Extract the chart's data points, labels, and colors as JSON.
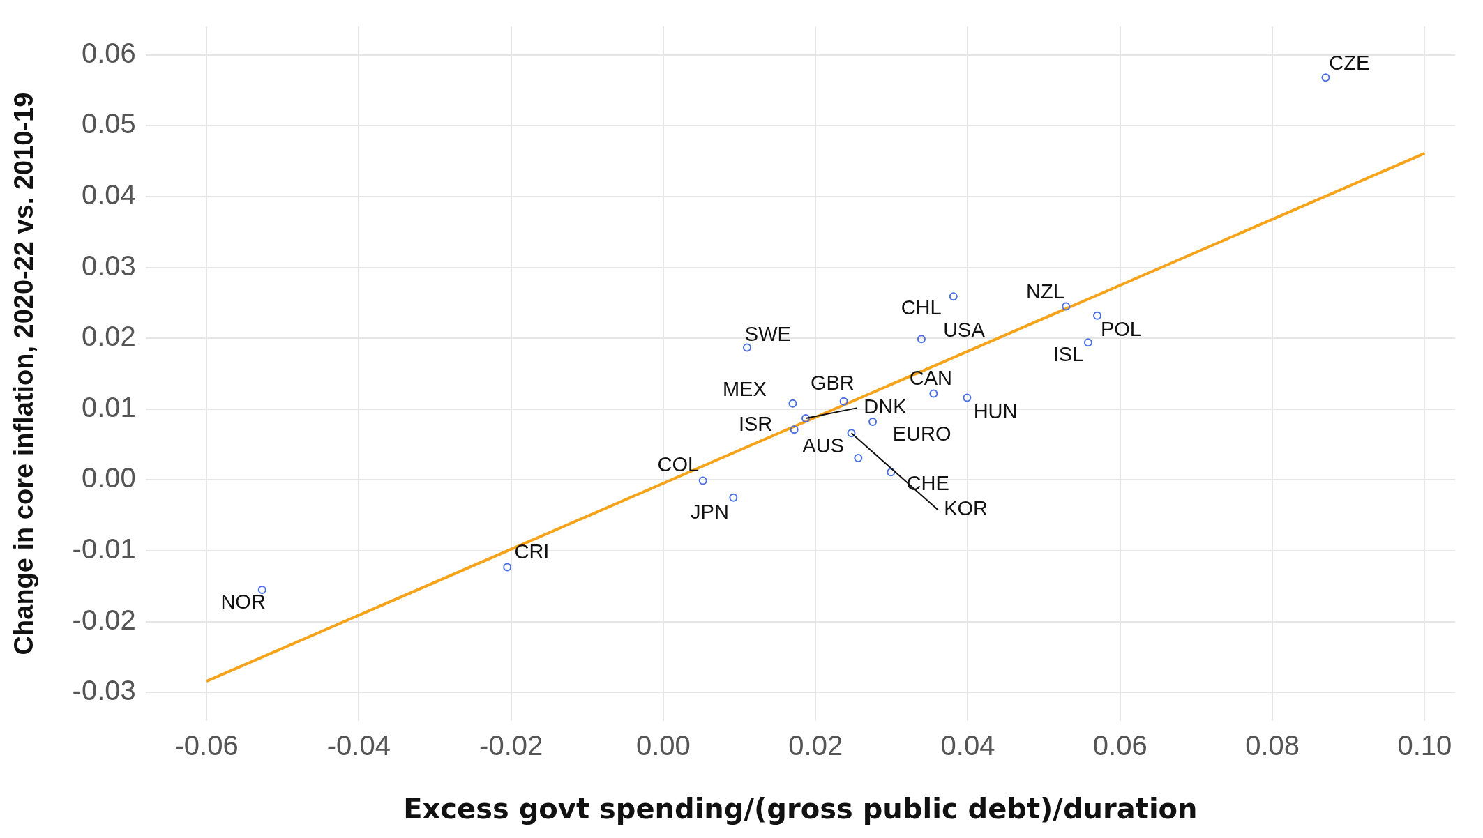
{
  "chart_data": {
    "type": "scatter",
    "xlabel": "Excess govt spending/(gross public debt)/duration",
    "ylabel": "Change in core inflation, 2020-22 vs. 2010-19",
    "xlim": [
      -0.068,
      0.104
    ],
    "ylim": [
      -0.034,
      0.064
    ],
    "xticks": [
      {
        "value": -0.06,
        "label": "-0.06"
      },
      {
        "value": -0.04,
        "label": "-0.04"
      },
      {
        "value": -0.02,
        "label": "-0.02"
      },
      {
        "value": 0,
        "label": "0.00"
      },
      {
        "value": 0.02,
        "label": "0.02"
      },
      {
        "value": 0.04,
        "label": "0.04"
      },
      {
        "value": 0.06,
        "label": "0.06"
      },
      {
        "value": 0.08,
        "label": "0.08"
      },
      {
        "value": 0.1,
        "label": "0.10"
      }
    ],
    "yticks": [
      {
        "value": -0.03,
        "label": "-0.03"
      },
      {
        "value": -0.02,
        "label": "-0.02"
      },
      {
        "value": -0.01,
        "label": "-0.01"
      },
      {
        "value": 0,
        "label": "0.00"
      },
      {
        "value": 0.01,
        "label": "0.01"
      },
      {
        "value": 0.02,
        "label": "0.02"
      },
      {
        "value": 0.03,
        "label": "0.03"
      },
      {
        "value": 0.04,
        "label": "0.04"
      },
      {
        "value": 0.05,
        "label": "0.05"
      },
      {
        "value": 0.06,
        "label": "0.06"
      }
    ],
    "grid": true,
    "legend": false,
    "marker": "circle",
    "series": [
      {
        "type": "scatter",
        "color": "#4a6fe3",
        "x": [
          0.087,
          0.0529,
          0.057,
          0.0558,
          0.0381,
          0.0339,
          0.011,
          0.0355,
          0.0399,
          0.017,
          0.0237,
          0.0187,
          0.0275,
          0.0172,
          0.0256,
          0.0247,
          0.0299,
          0.0052,
          0.0092,
          -0.0205,
          -0.0527
        ],
        "values": [
          0.0568,
          0.0245,
          0.0232,
          0.0194,
          0.0259,
          0.0199,
          0.0187,
          0.0122,
          0.0116,
          0.0108,
          0.0111,
          0.0087,
          0.0082,
          0.0071,
          0.0031,
          0.0066,
          0.0011,
          -0.0001,
          -0.0025,
          -0.0123,
          -0.0155
        ]
      },
      {
        "type": "line",
        "color": "#f5a31a",
        "line_style": "solid",
        "marker": "none",
        "x": [
          -0.06,
          0.1
        ],
        "values": [
          -0.0284,
          0.0461
        ]
      }
    ],
    "annotations": [
      {
        "text": "CZE",
        "x": 0.087,
        "y": 0.0568
      },
      {
        "text": "NZL",
        "x": 0.0529,
        "y": 0.0245
      },
      {
        "text": "POL",
        "x": 0.057,
        "y": 0.0232
      },
      {
        "text": "ISL",
        "x": 0.0558,
        "y": 0.0194
      },
      {
        "text": "CHL",
        "x": 0.0381,
        "y": 0.0259
      },
      {
        "text": "USA",
        "x": 0.0339,
        "y": 0.0199
      },
      {
        "text": "SWE",
        "x": 0.011,
        "y": 0.0187
      },
      {
        "text": "CAN",
        "x": 0.0355,
        "y": 0.0122
      },
      {
        "text": "HUN",
        "x": 0.0399,
        "y": 0.0116
      },
      {
        "text": "MEX",
        "x": 0.017,
        "y": 0.0108
      },
      {
        "text": "GBR",
        "x": 0.0237,
        "y": 0.0111
      },
      {
        "text": "DNK",
        "x": 0.0187,
        "y": 0.0087
      },
      {
        "text": "EURO",
        "x": 0.0275,
        "y": 0.0082
      },
      {
        "text": "ISR",
        "x": 0.0172,
        "y": 0.0071
      },
      {
        "text": "AUS",
        "x": 0.0256,
        "y": 0.0031
      },
      {
        "text": "KOR",
        "x": 0.0247,
        "y": 0.0066
      },
      {
        "text": "CHE",
        "x": 0.0299,
        "y": 0.0011
      },
      {
        "text": "COL",
        "x": 0.0052,
        "y": -0.0001
      },
      {
        "text": "JPN",
        "x": 0.0092,
        "y": -0.0025
      },
      {
        "text": "CRI",
        "x": -0.0205,
        "y": -0.0123
      },
      {
        "text": "NOR",
        "x": -0.0527,
        "y": -0.0155
      }
    ]
  }
}
